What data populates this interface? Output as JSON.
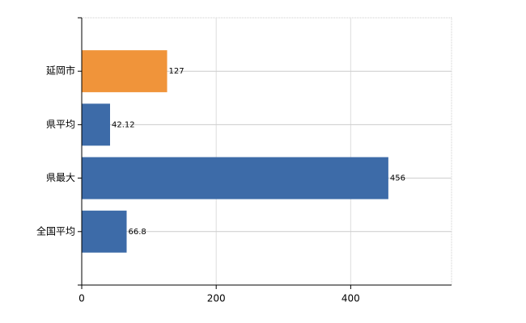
{
  "chart_data": {
    "type": "bar",
    "orientation": "horizontal",
    "categories": [
      "延岡市",
      "県平均",
      "県最大",
      "全国平均"
    ],
    "values": [
      127,
      42.12,
      456,
      66.8
    ],
    "colors": [
      "#f0943a",
      "#3d6ba8",
      "#3d6ba8",
      "#3d6ba8"
    ],
    "xlim": [
      0,
      550
    ],
    "xticks": [
      0,
      200,
      400
    ],
    "grid": true
  }
}
